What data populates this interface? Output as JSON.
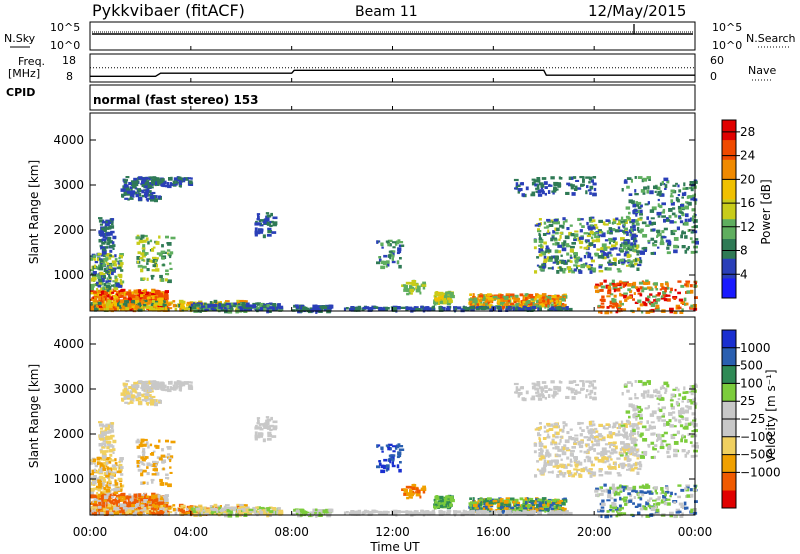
{
  "header": {
    "station": "Pykkvibaer (fitACF)",
    "beam": "Beam 11",
    "date": "12/May/2015"
  },
  "side_labels": {
    "nsky": "N.Sky",
    "nsearch": "N.Search",
    "freq_line1": "Freq.",
    "freq_line2": "[MHz]",
    "cpid": "CPID",
    "nave": "Nave"
  },
  "cpid_text": "normal (fast stereo) 153",
  "colors": {
    "power": [
      "#1a1aff",
      "#2a3fb8",
      "#2f7a55",
      "#5fae5f",
      "#c8cc1a",
      "#f0c000",
      "#f08a00",
      "#f04a00",
      "#e00000"
    ],
    "velocity": [
      "#e00000",
      "#f05a00",
      "#f0a000",
      "#f0d060",
      "#c8c8c8",
      "#c8c8c8",
      "#7ccc3c",
      "#2f8a55",
      "#2a5fb0",
      "#1a2fd0"
    ],
    "axis": "#000000"
  },
  "chart_data": [
    {
      "type": "line",
      "panel": "noise",
      "ylabel_left": "N.Sky",
      "ylabel_right": "N.Search",
      "left_ticks": [
        "10^5",
        "10^0"
      ],
      "right_ticks": [
        "10^5",
        "10^0"
      ],
      "x_ticks": [
        "00:00",
        "04:00",
        "08:00",
        "12:00",
        "16:00",
        "20:00",
        "00:00"
      ]
    },
    {
      "type": "line",
      "panel": "frequency",
      "ylabel_left": "Freq. [MHz]",
      "ylabel_right": "Nave",
      "left_ticks": [
        "18",
        "8"
      ],
      "right_ticks": [
        "60",
        "0"
      ],
      "x_hours": [
        0,
        2.6,
        2.8,
        8,
        8.1,
        18,
        18.1,
        24
      ],
      "freq_mhz": [
        10.2,
        10.2,
        11.4,
        11.4,
        12.5,
        12.5,
        10.6,
        10.6
      ],
      "nave": [
        33,
        33,
        33,
        33,
        33,
        33,
        33,
        33
      ]
    },
    {
      "type": "heatmap",
      "panel": "power",
      "ylabel": "Slant Range [km]",
      "xlabel": "",
      "y_ticks": [
        "1000",
        "2000",
        "3000",
        "4000"
      ],
      "ylim": [
        200,
        4600
      ],
      "xlim_hours": [
        0,
        24
      ],
      "colorbar_label": "Power [dB]",
      "colorbar_ticks": [
        "4",
        "8",
        "12",
        "16",
        "20",
        "24",
        "28"
      ],
      "colorbar_range": [
        0,
        30
      ]
    },
    {
      "type": "heatmap",
      "panel": "velocity",
      "ylabel": "Slant Range [km]",
      "xlabel": "Time UT",
      "y_ticks": [
        "1000",
        "2000",
        "3000",
        "4000"
      ],
      "ylim": [
        200,
        4600
      ],
      "xlim_hours": [
        0,
        24
      ],
      "x_ticks": [
        "00:00",
        "04:00",
        "08:00",
        "12:00",
        "16:00",
        "20:00",
        "00:00"
      ],
      "colorbar_label": "Velocity [m s⁻¹]",
      "colorbar_ticks": [
        "1000",
        "500",
        "100",
        "25",
        "−25",
        "−100",
        "−500",
        "−1000"
      ]
    }
  ]
}
